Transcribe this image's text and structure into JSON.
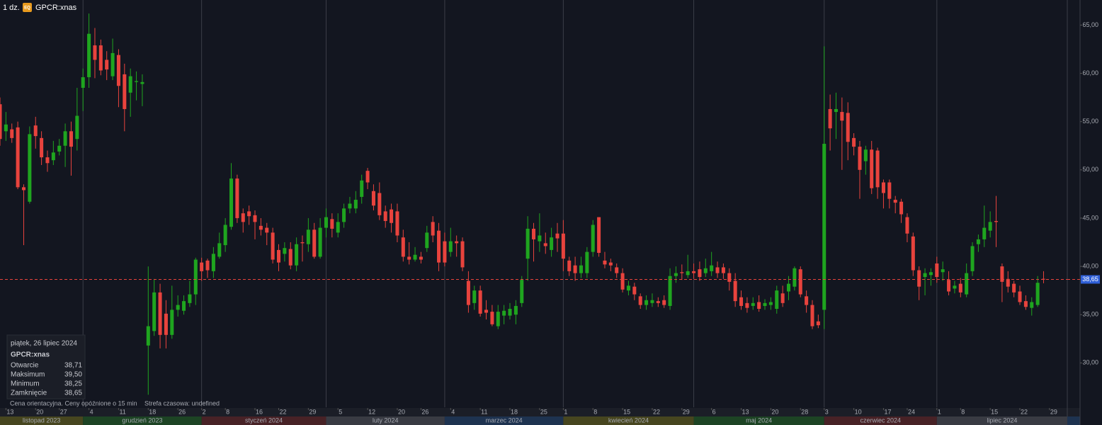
{
  "header": {
    "interval": "1 dz.",
    "badge": "EQ",
    "symbol": "GPCR:xnas"
  },
  "info_box": {
    "date": "piątek, 26 lipiec 2024",
    "symbol": "GPCR:xnas",
    "rows": [
      {
        "label": "Otwarcie",
        "value": "38,71"
      },
      {
        "label": "Maksimum",
        "value": "39,50"
      },
      {
        "label": "Minimum",
        "value": "38,25"
      },
      {
        "label": "Zamknięcie",
        "value": "38,65"
      }
    ]
  },
  "footer": {
    "note": "Cena orientacyjna. Ceny opóźnione o 15 min",
    "timezone": "Strefa czasowa: undefined"
  },
  "chart_data": {
    "type": "candlestick",
    "up_color": "#1fa51f",
    "down_color": "#e8433d",
    "xlim": [
      0,
      180
    ],
    "ylim": [
      25.4,
      67.6
    ],
    "yticks": [
      {
        "value": 30,
        "label": "30,00"
      },
      {
        "value": 35,
        "label": "35,00"
      },
      {
        "value": 40,
        "label": "40,00"
      },
      {
        "value": 45,
        "label": "45,00"
      },
      {
        "value": 50,
        "label": "50,00"
      },
      {
        "value": 55,
        "label": "55,00"
      },
      {
        "value": 60,
        "label": "60,00"
      },
      {
        "value": 65,
        "label": "65,00"
      }
    ],
    "xticks": [
      {
        "value": 1,
        "label": "13"
      },
      {
        "value": 6,
        "label": "20"
      },
      {
        "value": 10,
        "label": "27"
      },
      {
        "value": 15,
        "label": "4"
      },
      {
        "value": 20,
        "label": "11"
      },
      {
        "value": 25,
        "label": "18"
      },
      {
        "value": 30,
        "label": "26"
      },
      {
        "value": 34,
        "label": "2"
      },
      {
        "value": 38,
        "label": "8"
      },
      {
        "value": 43,
        "label": "16"
      },
      {
        "value": 47,
        "label": "22"
      },
      {
        "value": 52,
        "label": "29"
      },
      {
        "value": 57,
        "label": "5"
      },
      {
        "value": 62,
        "label": "12"
      },
      {
        "value": 67,
        "label": "20"
      },
      {
        "value": 71,
        "label": "26"
      },
      {
        "value": 76,
        "label": "4"
      },
      {
        "value": 81,
        "label": "11"
      },
      {
        "value": 86,
        "label": "18"
      },
      {
        "value": 91,
        "label": "25"
      },
      {
        "value": 95,
        "label": "1"
      },
      {
        "value": 100,
        "label": "8"
      },
      {
        "value": 105,
        "label": "15"
      },
      {
        "value": 110,
        "label": "22"
      },
      {
        "value": 115,
        "label": "29"
      },
      {
        "value": 120,
        "label": "6"
      },
      {
        "value": 125,
        "label": "13"
      },
      {
        "value": 130,
        "label": "20"
      },
      {
        "value": 135,
        "label": "28"
      },
      {
        "value": 139,
        "label": "3"
      },
      {
        "value": 144,
        "label": "10"
      },
      {
        "value": 149,
        "label": "17"
      },
      {
        "value": 153,
        "label": "24"
      },
      {
        "value": 158,
        "label": "1"
      },
      {
        "value": 162,
        "label": "8"
      },
      {
        "value": 167,
        "label": "15"
      },
      {
        "value": 172,
        "label": "22"
      },
      {
        "value": 177,
        "label": "29"
      }
    ],
    "months": [
      {
        "label": "listopad 2023",
        "start": 0,
        "color": "#47461f"
      },
      {
        "label": "grudzień 2023",
        "start": 14,
        "color": "#1d4424"
      },
      {
        "label": "styczeń 2024",
        "start": 34,
        "color": "#482226"
      },
      {
        "label": "luty 2024",
        "start": 55,
        "color": "#393b43"
      },
      {
        "label": "marzec 2024",
        "start": 75,
        "color": "#1e3350"
      },
      {
        "label": "kwiecień 2024",
        "start": 95,
        "color": "#47461f"
      },
      {
        "label": "maj 2024",
        "start": 117,
        "color": "#1d4424"
      },
      {
        "label": "czerwiec 2024",
        "start": 139,
        "color": "#482226"
      },
      {
        "label": "lipiec 2024",
        "start": 158,
        "color": "#393b43"
      }
    ],
    "last_price": {
      "value": 38.65,
      "label": "38,65",
      "color": "#e8433d"
    },
    "open": [
      56.8,
      54.0,
      54.2,
      54.4,
      48.2,
      46.7,
      54.6,
      53.3,
      51.3,
      51.0,
      51.9,
      52.5,
      54.0,
      53.2,
      58.5,
      59.6,
      62.9,
      62.9,
      61.4,
      59.7,
      61.9,
      59.9,
      58.0,
      59.1,
      58.9,
      31.8,
      33.3,
      37.3,
      35.1,
      32.9,
      35.5,
      35.4,
      36.2,
      37.1,
      40.4,
      40.6,
      39.5,
      41.0,
      42.2,
      44.1,
      49.1,
      45.5,
      45.7,
      45.3,
      44.2,
      44.0,
      43.5,
      41.7,
      41.3,
      41.8,
      40.1,
      42.5,
      42.3,
      43.8,
      41.0,
      44.0,
      44.9,
      43.5,
      44.6,
      46.0,
      46.0,
      47.2,
      49.9,
      47.8,
      47.6,
      45.7,
      45.9,
      45.7,
      43.0,
      41.0,
      40.7,
      41.0,
      41.9,
      44.6,
      43.7,
      42.6,
      41.5,
      42.6,
      42.6,
      38.5,
      36.2,
      37.5,
      35.5,
      35.3,
      33.8,
      34.9,
      34.9,
      35.0,
      36.2,
      40.8,
      43.9,
      42.6,
      42.4,
      41.7,
      43.4,
      43.4,
      40.6,
      40.1,
      39.3,
      39.3,
      41.5,
      45.1,
      40.6,
      40.4,
      39.9,
      39.3,
      37.5,
      37.9,
      36.9,
      36.0,
      36.2,
      36.4,
      36.5,
      35.9,
      39.0,
      39.4,
      39.1,
      39.5,
      39.7,
      39.3,
      39.5,
      39.9,
      39.9,
      39.3,
      38.5,
      36.8,
      36.2,
      35.9,
      36.3,
      35.9,
      36.0,
      35.6,
      37.2,
      37.4,
      37.9,
      39.7,
      36.9,
      36.0,
      34.3,
      35.5,
      56.3,
      56.0,
      56.0,
      55.9,
      53.3,
      52.4,
      50.9,
      52.1,
      52.0,
      48.7,
      48.7,
      46.9,
      46.7,
      45.1,
      43.1,
      39.6,
      38.9,
      39.1,
      40.3,
      39.4,
      38.6,
      37.7,
      38.2,
      37.1,
      39.5,
      42.3,
      42.8,
      43.7,
      44.7,
      40.0,
      38.7,
      38.2,
      37.4,
      36.4,
      35.7,
      36.0,
      38.71
    ],
    "high": [
      57.5,
      56.0,
      54.8,
      55.0,
      48.5,
      54.5,
      55.5,
      54.0,
      52.0,
      53.0,
      53.2,
      54.8,
      55.0,
      58.5,
      60.5,
      66.2,
      64.7,
      63.5,
      62.3,
      63.6,
      62.5,
      61.0,
      60.5,
      60.2,
      59.9,
      40.0,
      38.7,
      38.2,
      36.5,
      38.0,
      37.0,
      37.0,
      38.5,
      40.9,
      40.9,
      40.8,
      42.0,
      43.5,
      45.0,
      50.7,
      49.5,
      46.0,
      46.3,
      45.8,
      45.0,
      44.5,
      44.0,
      42.3,
      42.5,
      42.5,
      43.0,
      43.2,
      45.0,
      44.5,
      45.0,
      46.0,
      45.5,
      45.5,
      46.5,
      47.2,
      47.8,
      49.5,
      50.2,
      48.5,
      48.7,
      46.3,
      46.5,
      46.5,
      43.8,
      42.5,
      42.0,
      41.5,
      44.2,
      45.2,
      44.5,
      43.5,
      44.0,
      43.2,
      43.0,
      39.5,
      38.0,
      38.0,
      36.5,
      36.0,
      36.0,
      36.0,
      36.2,
      36.5,
      39.0,
      45.2,
      44.5,
      45.5,
      43.5,
      44.0,
      44.5,
      44.8,
      41.0,
      41.0,
      41.0,
      42.0,
      44.8,
      45.1,
      41.5,
      40.8,
      40.3,
      39.8,
      38.5,
      38.3,
      37.2,
      37.0,
      37.2,
      36.8,
      37.0,
      39.8,
      40.0,
      40.2,
      41.2,
      40.3,
      40.5,
      40.8,
      41.5,
      40.5,
      40.3,
      39.8,
      39.3,
      37.5,
      36.8,
      36.8,
      37.0,
      36.6,
      36.8,
      38.0,
      38.0,
      39.0,
      40.0,
      40.0,
      37.5,
      36.5,
      35.0,
      62.8,
      57.8,
      58.0,
      57.5,
      57.0,
      53.8,
      53.0,
      52.5,
      53.0,
      52.3,
      49.0,
      49.0,
      47.3,
      47.0,
      45.5,
      43.5,
      40.0,
      39.8,
      39.8,
      41.0,
      40.5,
      39.5,
      38.5,
      38.8,
      40.3,
      42.5,
      43.3,
      46.3,
      45.7,
      47.3,
      40.3,
      39.5,
      38.5,
      38.0,
      37.0,
      36.8,
      39.0,
      39.5
    ],
    "low": [
      52.5,
      53.0,
      52.8,
      48.0,
      42.2,
      46.5,
      52.2,
      50.5,
      49.8,
      50.5,
      51.5,
      50.3,
      49.4,
      52.0,
      56.1,
      58.5,
      59.5,
      59.8,
      59.3,
      59.3,
      56.5,
      54.0,
      55.5,
      57.2,
      56.6,
      26.7,
      32.8,
      31.5,
      31.5,
      32.5,
      34.8,
      35.0,
      35.8,
      36.0,
      38.5,
      38.8,
      38.8,
      40.8,
      41.5,
      43.8,
      44.5,
      43.5,
      44.3,
      42.8,
      43.2,
      42.2,
      40.3,
      39.5,
      40.5,
      39.7,
      39.5,
      40.5,
      41.5,
      40.8,
      40.8,
      43.0,
      43.0,
      43.0,
      44.0,
      45.5,
      45.5,
      46.5,
      48.0,
      45.8,
      44.8,
      44.0,
      43.5,
      42.5,
      40.5,
      40.2,
      40.5,
      40.3,
      41.5,
      42.5,
      39.5,
      40.0,
      41.0,
      41.0,
      39.5,
      35.2,
      35.5,
      34.8,
      34.5,
      33.8,
      33.5,
      34.0,
      34.5,
      34.0,
      35.8,
      38.5,
      40.5,
      41.5,
      41.3,
      41.0,
      41.5,
      39.5,
      39.0,
      38.5,
      38.8,
      38.8,
      41.0,
      41.0,
      39.8,
      39.5,
      38.8,
      37.3,
      37.0,
      36.5,
      35.6,
      35.5,
      35.8,
      35.8,
      35.7,
      35.5,
      38.3,
      38.6,
      38.8,
      38.7,
      38.5,
      38.9,
      39.0,
      38.8,
      38.7,
      37.5,
      35.8,
      35.5,
      35.2,
      35.5,
      35.3,
      35.5,
      35.5,
      35.1,
      35.8,
      36.5,
      37.5,
      36.8,
      35.2,
      33.5,
      33.6,
      33.5,
      52.0,
      53.2,
      50.0,
      51.0,
      51.5,
      47.0,
      49.5,
      47.5,
      47.0,
      46.0,
      46.0,
      45.5,
      44.5,
      42.5,
      39.0,
      36.5,
      37.0,
      38.0,
      38.3,
      38.5,
      37.0,
      37.2,
      36.8,
      36.8,
      39.0,
      41.5,
      42.0,
      43.0,
      42.0,
      36.3,
      37.3,
      36.8,
      36.0,
      35.5,
      34.9,
      35.8,
      38.25
    ],
    "close": [
      53.2,
      54.7,
      53.3,
      48.2,
      47.9,
      53.7,
      53.5,
      51.3,
      50.7,
      51.8,
      52.5,
      54.0,
      52.4,
      55.6,
      59.6,
      64.1,
      61.4,
      60.3,
      60.4,
      62.1,
      58.7,
      56.3,
      59.7,
      59.2,
      59.1,
      33.8,
      37.3,
      32.9,
      32.9,
      35.5,
      36.0,
      36.4,
      37.1,
      40.7,
      39.5,
      39.6,
      41.3,
      42.4,
      44.3,
      49.1,
      45.0,
      44.6,
      45.2,
      44.6,
      43.8,
      43.5,
      40.7,
      40.4,
      41.9,
      40.1,
      42.3,
      42.4,
      43.8,
      41.0,
      44.0,
      45.1,
      43.9,
      44.6,
      46.0,
      46.5,
      46.9,
      48.9,
      48.7,
      46.3,
      45.3,
      44.7,
      44.5,
      43.2,
      41.0,
      40.7,
      41.2,
      40.7,
      43.5,
      43.2,
      40.4,
      40.4,
      42.6,
      42.4,
      39.9,
      36.0,
      37.5,
      35.1,
      35.2,
      34.0,
      35.3,
      35.4,
      35.6,
      35.9,
      38.6,
      43.9,
      42.8,
      43.2,
      42.1,
      43.0,
      42.9,
      40.8,
      39.5,
      39.3,
      40.1,
      41.5,
      44.3,
      41.4,
      40.2,
      40.1,
      39.3,
      37.6,
      38.0,
      37.1,
      36.0,
      36.5,
      36.5,
      36.2,
      36.0,
      39.0,
      39.3,
      39.3,
      39.5,
      39.3,
      38.9,
      39.8,
      40.1,
      39.3,
      39.3,
      38.4,
      36.4,
      35.9,
      35.7,
      36.2,
      35.6,
      36.2,
      36.3,
      37.5,
      36.2,
      38.2,
      39.8,
      37.1,
      36.0,
      33.8,
      33.9,
      52.7,
      54.3,
      56.3,
      55.1,
      52.9,
      52.4,
      50.0,
      52.1,
      48.1,
      48.2,
      47.6,
      47.0,
      46.6,
      45.4,
      43.4,
      39.6,
      37.9,
      39.3,
      39.4,
      38.9,
      39.7,
      37.4,
      38.0,
      37.3,
      39.3,
      42.1,
      42.8,
      44.0,
      44.6,
      44.6,
      38.4,
      37.9,
      37.3,
      36.3,
      35.8,
      36.3,
      38.3,
      38.65
    ]
  }
}
